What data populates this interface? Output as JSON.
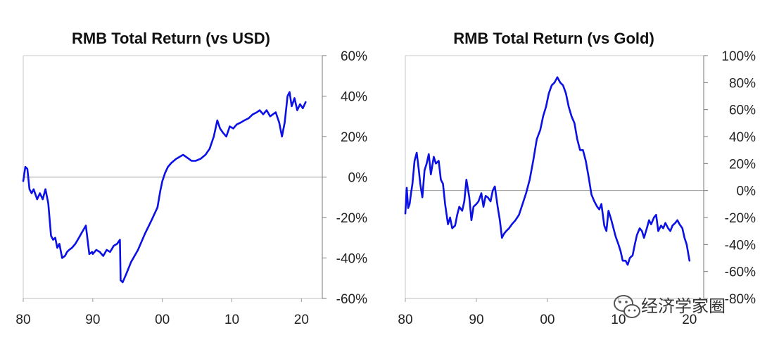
{
  "chart_data": [
    {
      "type": "line",
      "title": "RMB Total Return (vs USD)",
      "xlabel": "",
      "ylabel": "",
      "xlim": [
        1980,
        2023
      ],
      "ylim": [
        -60,
        60
      ],
      "x_ticks": [
        1980,
        1990,
        2000,
        2010,
        2020
      ],
      "x_tick_labels": [
        "80",
        "90",
        "00",
        "10",
        "20"
      ],
      "y_ticks": [
        60,
        40,
        20,
        0,
        -20,
        -40,
        -60
      ],
      "y_tick_labels": [
        "60%",
        "40%",
        "20%",
        "0%",
        "-20%",
        "-40%",
        "-60%"
      ],
      "grid": false,
      "zero_line": true,
      "y_axis_side": "right",
      "line_color": "#0a10e6",
      "series": [
        {
          "x": [
            1980.0,
            1980.3,
            1980.6,
            1980.9,
            1981.2,
            1981.5,
            1982.0,
            1982.4,
            1982.8,
            1983.2,
            1983.6,
            1984.0,
            1984.3,
            1984.6,
            1984.9,
            1985.2,
            1985.6,
            1986.0,
            1986.3,
            1986.6,
            1987.0,
            1987.5,
            1988.0,
            1988.5,
            1989.0,
            1989.5,
            1989.9,
            1990.0,
            1990.5,
            1991.0,
            1991.5,
            1992.0,
            1992.5,
            1993.0,
            1993.5,
            1993.9,
            1994.0,
            1994.3,
            1994.8,
            1995.5,
            1996.5,
            1997.5,
            1998.5,
            1999.3,
            1999.7,
            2000.0,
            2000.4,
            2000.8,
            2001.3,
            2002.0,
            2003.0,
            2003.8,
            2004.2,
            2004.8,
            2005.5,
            2006.2,
            2006.8,
            2007.4,
            2007.9,
            2008.3,
            2008.7,
            2009.2,
            2009.7,
            2010.2,
            2010.7,
            2011.3,
            2011.8,
            2012.4,
            2013.0,
            2013.6,
            2014.0,
            2014.5,
            2015.0,
            2015.5,
            2015.9,
            2016.3,
            2016.8,
            2017.2,
            2017.6,
            2018.0,
            2018.3,
            2018.6,
            2019.0,
            2019.4,
            2019.8,
            2020.2,
            2020.6
          ],
          "y": [
            -2,
            5,
            4,
            -6,
            -8,
            -6,
            -11,
            -8,
            -11,
            -6,
            -13,
            -29,
            -31,
            -30,
            -35,
            -33,
            -40,
            -39,
            -37,
            -36,
            -35,
            -33,
            -30,
            -27,
            -24,
            -38,
            -37,
            -38,
            -36,
            -37,
            -39,
            -36,
            -37,
            -34,
            -33,
            -31,
            -51,
            -52,
            -48,
            -42,
            -36,
            -28,
            -21,
            -15,
            -7,
            -2,
            2,
            5,
            7,
            9,
            11,
            9,
            8,
            8,
            9,
            11,
            14,
            20,
            28,
            24,
            22,
            20,
            25,
            24,
            26,
            27,
            28,
            29,
            31,
            32,
            33,
            31,
            33,
            30,
            31,
            32,
            27,
            20,
            27,
            40,
            42,
            35,
            39,
            33,
            36,
            34,
            37
          ]
        }
      ]
    },
    {
      "type": "line",
      "title": "RMB Total Return (vs Gold)",
      "xlabel": "",
      "ylabel": "",
      "xlim": [
        1980,
        2022
      ],
      "ylim": [
        -80,
        100
      ],
      "x_ticks": [
        1980,
        1990,
        2000,
        2010,
        2020
      ],
      "x_tick_labels": [
        "80",
        "90",
        "00",
        "10",
        "20"
      ],
      "y_ticks": [
        100,
        80,
        60,
        40,
        20,
        0,
        -20,
        -40,
        -60,
        -80
      ],
      "y_tick_labels": [
        "100%",
        "80%",
        "60%",
        "40%",
        "20%",
        "0%",
        "-20%",
        "-40%",
        "-60%",
        "-80%"
      ],
      "grid": false,
      "zero_line": true,
      "y_axis_side": "right",
      "line_color": "#0a10e6",
      "series": [
        {
          "x": [
            1980.0,
            1980.2,
            1980.4,
            1980.6,
            1980.8,
            1981.0,
            1981.3,
            1981.6,
            1981.9,
            1982.1,
            1982.4,
            1982.7,
            1983.0,
            1983.3,
            1983.6,
            1984.0,
            1984.3,
            1984.7,
            1985.0,
            1985.3,
            1985.6,
            1986.0,
            1986.3,
            1986.6,
            1987.0,
            1987.3,
            1987.6,
            1988.0,
            1988.3,
            1988.6,
            1989.0,
            1989.3,
            1989.6,
            1990.0,
            1990.3,
            1990.7,
            1991.0,
            1991.3,
            1991.6,
            1992.0,
            1992.3,
            1992.6,
            1993.0,
            1993.3,
            1993.6,
            1993.9,
            1994.2,
            1994.6,
            1995.0,
            1995.5,
            1996.0,
            1996.5,
            1997.0,
            1997.5,
            1998.0,
            1998.5,
            1999.0,
            1999.4,
            1999.8,
            2000.2,
            2000.6,
            2001.0,
            2001.4,
            2001.8,
            2002.2,
            2002.6,
            2003.0,
            2003.4,
            2003.8,
            2004.2,
            2004.6,
            2005.0,
            2005.4,
            2005.8,
            2006.2,
            2006.6,
            2007.0,
            2007.3,
            2007.6,
            2008.0,
            2008.3,
            2008.6,
            2009.0,
            2009.3,
            2009.6,
            2010.0,
            2010.3,
            2010.6,
            2011.0,
            2011.3,
            2011.6,
            2012.0,
            2012.3,
            2012.6,
            2013.0,
            2013.3,
            2013.6,
            2014.0,
            2014.3,
            2014.6,
            2015.0,
            2015.3,
            2015.6,
            2016.0,
            2016.3,
            2016.6,
            2017.0,
            2017.3,
            2017.6,
            2018.0,
            2018.3,
            2018.6,
            2019.0,
            2019.3,
            2019.6,
            2020.0
          ],
          "y": [
            -17,
            2,
            -13,
            -10,
            -2,
            5,
            22,
            28,
            15,
            5,
            -5,
            15,
            20,
            27,
            12,
            25,
            20,
            22,
            8,
            5,
            -10,
            -25,
            -20,
            -28,
            -26,
            -18,
            -12,
            -15,
            -8,
            8,
            -5,
            -22,
            -12,
            -10,
            -8,
            -2,
            -12,
            -4,
            -5,
            -8,
            0,
            3,
            -12,
            -22,
            -35,
            -32,
            -30,
            -28,
            -25,
            -22,
            -18,
            -10,
            -2,
            8,
            22,
            38,
            45,
            55,
            62,
            72,
            78,
            80,
            84,
            80,
            78,
            72,
            62,
            55,
            50,
            38,
            30,
            30,
            22,
            10,
            -3,
            -8,
            -12,
            -14,
            -10,
            -26,
            -30,
            -15,
            -22,
            -28,
            -34,
            -40,
            -45,
            -52,
            -52,
            -55,
            -50,
            -48,
            -40,
            -33,
            -28,
            -30,
            -35,
            -28,
            -22,
            -25,
            -20,
            -18,
            -30,
            -26,
            -28,
            -24,
            -28,
            -30,
            -26,
            -24,
            -22,
            -25,
            -28,
            -35,
            -40,
            -52
          ]
        }
      ]
    }
  ],
  "watermark": {
    "icon": "wechat-icon",
    "text": "经济学家圈"
  }
}
